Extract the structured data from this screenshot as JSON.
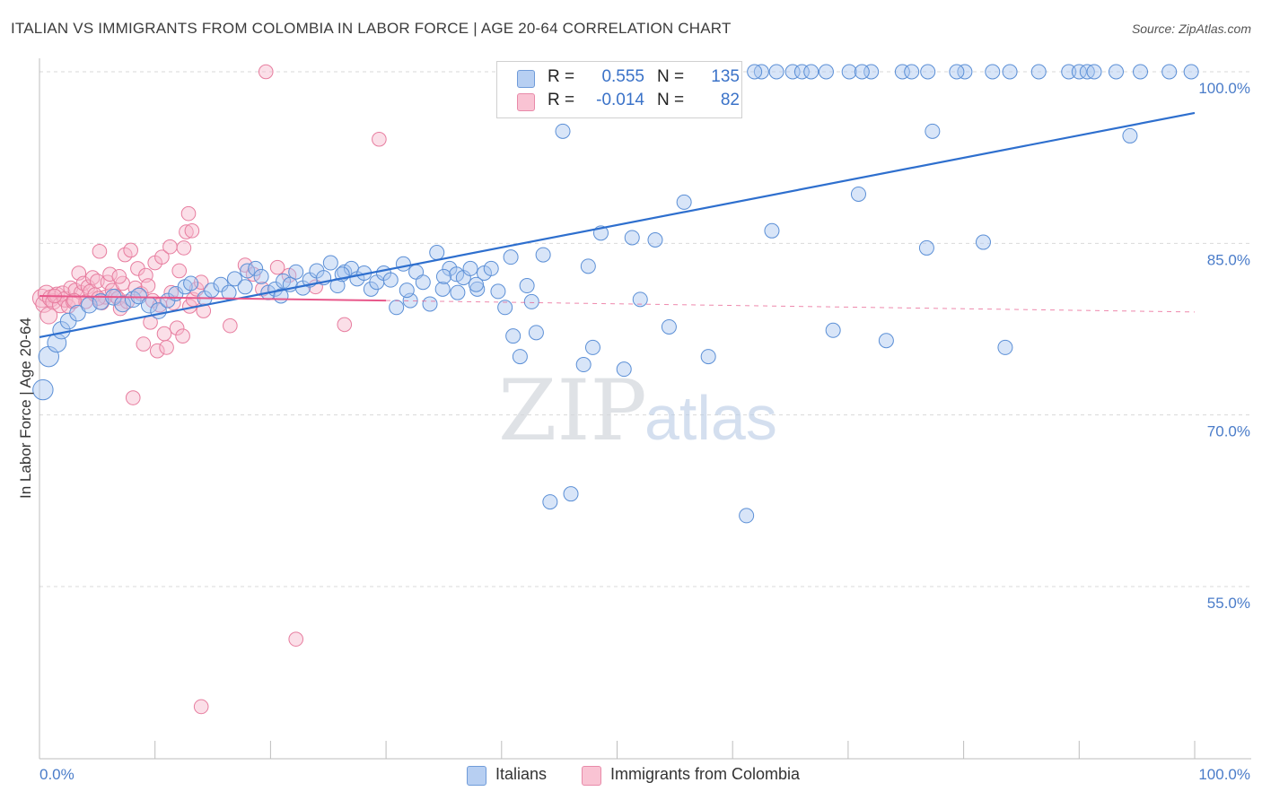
{
  "header": {
    "title": "ITALIAN VS IMMIGRANTS FROM COLOMBIA IN LABOR FORCE | AGE 20-64 CORRELATION CHART",
    "source": "Source: ZipAtlas.com"
  },
  "watermark": {
    "zip": "ZIP",
    "atlas": "atlas"
  },
  "legend": {
    "rows": [
      {
        "r_label": "R =",
        "r_value": "0.555",
        "n_label": "N =",
        "n_value": "135"
      },
      {
        "r_label": "R =",
        "r_value": "-0.014",
        "n_label": "N =",
        "n_value": "82"
      }
    ]
  },
  "bottom_legend": {
    "italians": "Italians",
    "colombia": "Immigrants from Colombia"
  },
  "colors": {
    "blue_fill": "#a9c6ef",
    "blue_stroke": "#5b8fd6",
    "blue_line": "#2e6fce",
    "pink_fill": "#f7b8cb",
    "pink_stroke": "#e77d9f",
    "pink_line": "#e8578a",
    "grid": "#d9d9d9",
    "tick_text": "#4a7cc9"
  },
  "chart_data": {
    "type": "scatter",
    "title": "ITALIAN VS IMMIGRANTS FROM COLOMBIA IN LABOR FORCE | AGE 20-64 CORRELATION CHART",
    "xlabel": "",
    "ylabel": "In Labor Force | Age 20-64",
    "xlim": [
      0,
      100
    ],
    "ylim": [
      40,
      101.5
    ],
    "x_tick_labels": [
      "0.0%",
      "100.0%"
    ],
    "y_ticks": [
      55,
      70,
      85,
      100
    ],
    "y_tick_labels": [
      "55.0%",
      "70.0%",
      "85.0%",
      "100.0%"
    ],
    "grid": true,
    "series": [
      {
        "name": "Italians",
        "r": 0.555,
        "n": 135,
        "trend": {
          "x": [
            0,
            100
          ],
          "y": [
            76.8,
            96.4
          ],
          "style": "solid"
        },
        "points": [
          [
            0.3,
            72.2,
            14
          ],
          [
            0.8,
            75.1,
            14
          ],
          [
            1.5,
            76.3,
            13
          ],
          [
            1.9,
            77.4,
            12
          ],
          [
            2.5,
            78.2,
            11
          ],
          [
            3.3,
            78.9,
            11
          ],
          [
            4.3,
            79.6,
            11
          ],
          [
            5.3,
            79.9,
            11
          ],
          [
            6.4,
            80.3,
            11
          ],
          [
            7.2,
            79.7,
            11
          ],
          [
            8.1,
            80.1,
            11
          ],
          [
            8.6,
            80.4,
            11
          ],
          [
            9.5,
            79.6,
            11
          ],
          [
            10.3,
            79.1,
            11
          ],
          [
            11.1,
            80.0,
            10
          ],
          [
            11.8,
            80.6,
            10
          ],
          [
            12.6,
            81.2,
            10
          ],
          [
            13.1,
            81.5,
            10
          ],
          [
            14.3,
            80.2,
            10
          ],
          [
            14.9,
            80.9,
            10
          ],
          [
            15.7,
            81.4,
            10
          ],
          [
            16.4,
            80.7,
            10
          ],
          [
            16.9,
            81.9,
            10
          ],
          [
            17.8,
            81.2,
            10
          ],
          [
            18.0,
            82.6,
            10
          ],
          [
            18.7,
            82.8,
            10
          ],
          [
            19.2,
            82.1,
            10
          ],
          [
            19.8,
            80.7,
            10
          ],
          [
            20.4,
            81.0,
            10
          ],
          [
            21.1,
            81.7,
            10
          ],
          [
            21.7,
            81.4,
            10
          ],
          [
            22.2,
            82.5,
            10
          ],
          [
            22.8,
            81.1,
            10
          ],
          [
            23.4,
            81.8,
            10
          ],
          [
            24.0,
            82.6,
            10
          ],
          [
            24.6,
            82.0,
            10
          ],
          [
            25.2,
            83.3,
            10
          ],
          [
            25.8,
            81.3,
            10
          ],
          [
            26.4,
            82.5,
            10
          ],
          [
            27.0,
            82.8,
            10
          ],
          [
            27.5,
            81.9,
            10
          ],
          [
            28.1,
            82.4,
            10
          ],
          [
            28.7,
            81.0,
            10
          ],
          [
            29.2,
            81.6,
            10
          ],
          [
            29.8,
            82.4,
            10
          ],
          [
            30.4,
            81.8,
            10
          ],
          [
            30.9,
            79.4,
            10
          ],
          [
            31.5,
            83.2,
            10
          ],
          [
            32.1,
            80.0,
            10
          ],
          [
            32.6,
            82.5,
            10
          ],
          [
            33.2,
            81.6,
            10
          ],
          [
            33.8,
            79.7,
            10
          ],
          [
            34.4,
            84.2,
            10
          ],
          [
            34.9,
            81.0,
            10
          ],
          [
            35.5,
            82.8,
            10
          ],
          [
            36.1,
            82.3,
            10
          ],
          [
            36.7,
            82.0,
            10
          ],
          [
            37.3,
            82.8,
            10
          ],
          [
            37.9,
            81.0,
            10
          ],
          [
            38.5,
            82.4,
            10
          ],
          [
            39.1,
            82.8,
            10
          ],
          [
            39.7,
            80.8,
            10
          ],
          [
            40.3,
            79.4,
            10
          ],
          [
            40.8,
            83.8,
            10
          ],
          [
            41.0,
            76.9,
            10
          ],
          [
            41.6,
            75.1,
            10
          ],
          [
            42.2,
            81.3,
            10
          ],
          [
            42.6,
            79.9,
            10
          ],
          [
            43.0,
            77.2,
            10
          ],
          [
            43.6,
            84.0,
            10
          ],
          [
            44.2,
            62.4,
            10
          ],
          [
            45.3,
            94.8,
            10
          ],
          [
            46.0,
            63.1,
            10
          ],
          [
            47.1,
            74.4,
            10
          ],
          [
            47.5,
            83.0,
            10
          ],
          [
            47.9,
            75.9,
            10
          ],
          [
            48.6,
            85.9,
            10
          ],
          [
            49.3,
            100.0,
            10
          ],
          [
            50.0,
            100.0,
            10
          ],
          [
            50.6,
            74.0,
            10
          ],
          [
            51.3,
            85.5,
            10
          ],
          [
            52.0,
            80.1,
            10
          ],
          [
            52.7,
            100.0,
            10
          ],
          [
            53.3,
            85.3,
            10
          ],
          [
            54.0,
            100.0,
            10
          ],
          [
            54.5,
            77.7,
            10
          ],
          [
            55.1,
            100.0,
            10
          ],
          [
            55.8,
            88.6,
            10
          ],
          [
            56.4,
            100.0,
            10
          ],
          [
            57.0,
            100.0,
            10
          ],
          [
            57.9,
            75.1,
            10
          ],
          [
            58.6,
            100.0,
            10
          ],
          [
            59.2,
            100.0,
            10
          ],
          [
            61.2,
            61.2,
            10
          ],
          [
            62.5,
            100.0,
            10
          ],
          [
            63.8,
            100.0,
            10
          ],
          [
            63.4,
            86.1,
            10
          ],
          [
            65.2,
            100.0,
            10
          ],
          [
            66.0,
            100.0,
            10
          ],
          [
            68.1,
            100.0,
            10
          ],
          [
            68.7,
            77.4,
            10
          ],
          [
            70.1,
            100.0,
            10
          ],
          [
            70.9,
            89.3,
            10
          ],
          [
            72.0,
            100.0,
            10
          ],
          [
            73.3,
            76.5,
            10
          ],
          [
            74.7,
            100.0,
            10
          ],
          [
            75.5,
            100.0,
            10
          ],
          [
            76.8,
            84.6,
            10
          ],
          [
            76.9,
            100.0,
            10
          ],
          [
            77.3,
            94.8,
            10
          ],
          [
            80.1,
            100.0,
            10
          ],
          [
            81.7,
            85.1,
            10
          ],
          [
            82.5,
            100.0,
            10
          ],
          [
            83.6,
            75.9,
            10
          ],
          [
            89.1,
            100.0,
            10
          ],
          [
            90.0,
            100.0,
            10
          ],
          [
            90.7,
            100.0,
            10
          ],
          [
            91.3,
            100.0,
            10
          ],
          [
            94.4,
            94.4,
            10
          ],
          [
            99.7,
            100.0,
            10
          ],
          [
            97.8,
            100.0,
            10
          ],
          [
            95.3,
            100.0,
            10
          ],
          [
            93.2,
            100.0,
            10
          ],
          [
            86.5,
            100.0,
            10
          ],
          [
            84.0,
            100.0,
            10
          ],
          [
            79.4,
            100.0,
            10
          ],
          [
            71.2,
            100.0,
            10
          ],
          [
            66.8,
            100.0,
            10
          ],
          [
            61.9,
            100.0,
            10
          ],
          [
            58.0,
            100.0,
            10
          ],
          [
            53.9,
            100.0,
            10
          ],
          [
            51.7,
            100.0,
            10
          ],
          [
            48.1,
            100.0,
            10
          ],
          [
            45.0,
            100.0,
            10
          ],
          [
            37.8,
            81.4,
            10
          ],
          [
            36.2,
            80.7,
            10
          ],
          [
            35.0,
            82.1,
            10
          ],
          [
            31.8,
            80.9,
            10
          ],
          [
            26.2,
            82.3,
            10
          ],
          [
            20.9,
            80.4,
            10
          ]
        ]
      },
      {
        "name": "Immigrants from Colombia",
        "r": -0.014,
        "n": 82,
        "trend": {
          "x": [
            0,
            30,
            100
          ],
          "y": [
            80.4,
            80.0,
            79.0
          ],
          "style": "solid-then-dashed"
        },
        "points": [
          [
            0.2,
            80.2,
            13
          ],
          [
            0.4,
            79.7,
            12
          ],
          [
            0.6,
            80.6,
            12
          ],
          [
            0.8,
            78.7,
            12
          ],
          [
            1.0,
            80.2,
            12
          ],
          [
            1.2,
            79.9,
            11
          ],
          [
            1.5,
            80.5,
            11
          ],
          [
            1.8,
            79.6,
            11
          ],
          [
            2.0,
            80.6,
            11
          ],
          [
            2.2,
            80.1,
            11
          ],
          [
            2.5,
            79.5,
            10
          ],
          [
            2.7,
            81.1,
            10
          ],
          [
            2.9,
            79.9,
            10
          ],
          [
            3.1,
            80.9,
            10
          ],
          [
            3.4,
            82.4,
            10
          ],
          [
            3.6,
            80.7,
            10
          ],
          [
            3.8,
            81.5,
            10
          ],
          [
            4.0,
            79.9,
            10
          ],
          [
            4.2,
            81.2,
            10
          ],
          [
            4.4,
            80.8,
            10
          ],
          [
            4.6,
            82.0,
            10
          ],
          [
            4.8,
            80.5,
            10
          ],
          [
            5.0,
            81.7,
            10
          ],
          [
            5.2,
            84.3,
            10
          ],
          [
            5.4,
            79.8,
            10
          ],
          [
            5.7,
            80.3,
            10
          ],
          [
            5.9,
            81.6,
            10
          ],
          [
            6.1,
            82.3,
            10
          ],
          [
            6.3,
            80.9,
            10
          ],
          [
            6.6,
            80.4,
            10
          ],
          [
            6.8,
            80.2,
            10
          ],
          [
            7.0,
            79.3,
            10
          ],
          [
            7.2,
            81.5,
            10
          ],
          [
            7.4,
            84.0,
            10
          ],
          [
            7.6,
            79.9,
            10
          ],
          [
            7.9,
            84.4,
            10
          ],
          [
            8.1,
            71.5,
            10
          ],
          [
            8.3,
            81.1,
            10
          ],
          [
            8.5,
            82.8,
            10
          ],
          [
            8.8,
            80.6,
            10
          ],
          [
            9.0,
            76.2,
            10
          ],
          [
            9.2,
            82.2,
            10
          ],
          [
            9.4,
            81.3,
            10
          ],
          [
            9.6,
            78.1,
            10
          ],
          [
            9.8,
            80.0,
            10
          ],
          [
            10.0,
            83.3,
            10
          ],
          [
            10.2,
            75.6,
            10
          ],
          [
            10.4,
            79.6,
            10
          ],
          [
            10.6,
            83.8,
            10
          ],
          [
            10.8,
            77.1,
            10
          ],
          [
            11.0,
            75.9,
            10
          ],
          [
            11.3,
            84.7,
            10
          ],
          [
            11.6,
            79.8,
            10
          ],
          [
            11.9,
            77.6,
            10
          ],
          [
            12.1,
            82.6,
            10
          ],
          [
            12.4,
            76.9,
            10
          ],
          [
            12.5,
            84.6,
            10
          ],
          [
            12.7,
            86.0,
            10
          ],
          [
            13.0,
            79.5,
            10
          ],
          [
            13.3,
            80.1,
            10
          ],
          [
            13.6,
            81.0,
            10
          ],
          [
            14.0,
            81.6,
            10
          ],
          [
            12.9,
            87.6,
            10
          ],
          [
            13.2,
            86.1,
            10
          ],
          [
            14.2,
            79.1,
            10
          ],
          [
            14.0,
            44.5,
            10
          ],
          [
            16.5,
            77.8,
            10
          ],
          [
            17.8,
            83.1,
            10
          ],
          [
            18.5,
            82.3,
            10
          ],
          [
            19.3,
            81.0,
            10
          ],
          [
            20.6,
            82.9,
            10
          ],
          [
            21.6,
            82.2,
            10
          ],
          [
            22.2,
            50.4,
            10
          ],
          [
            23.9,
            81.2,
            10
          ],
          [
            26.4,
            77.9,
            10
          ],
          [
            29.4,
            94.1,
            10
          ],
          [
            19.6,
            100.0,
            10
          ],
          [
            6.9,
            82.1,
            10
          ],
          [
            5.1,
            80.2,
            10
          ],
          [
            3.0,
            80.0,
            10
          ],
          [
            1.3,
            80.4,
            10
          ],
          [
            11.4,
            80.7,
            10
          ]
        ]
      }
    ]
  }
}
